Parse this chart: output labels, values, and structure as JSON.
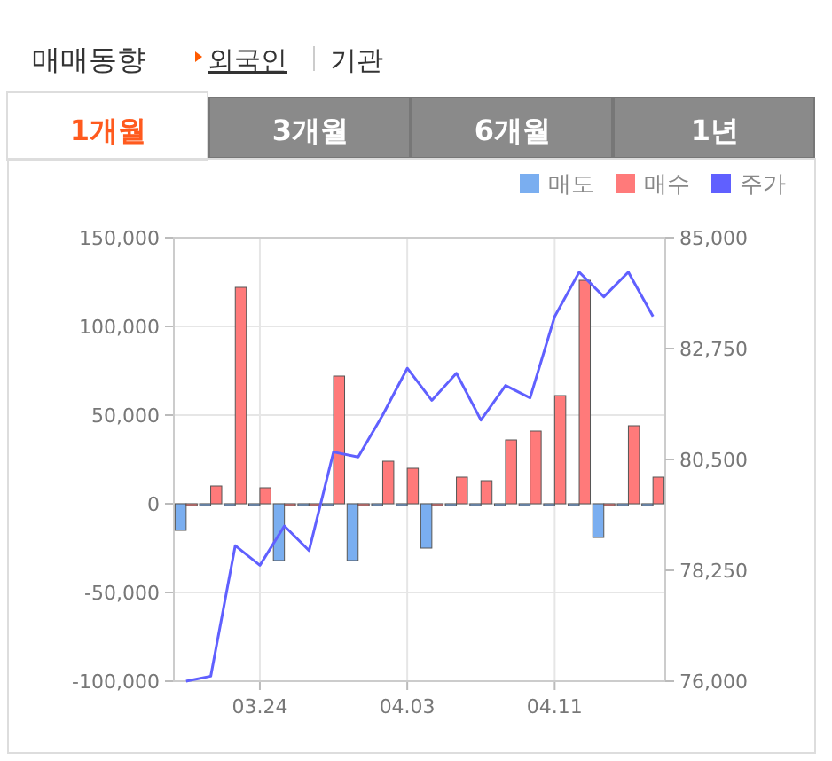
{
  "chart_data": {
    "type": "bar",
    "title": "매매동향",
    "annotations": [
      "외국인",
      "기관",
      "1개월",
      "3개월",
      "6개월",
      "1년"
    ],
    "categories": [
      null,
      null,
      null,
      "03.24",
      null,
      null,
      null,
      null,
      null,
      "04.03",
      null,
      null,
      null,
      null,
      null,
      "04.11",
      null,
      null,
      null,
      null
    ],
    "series": [
      {
        "name": "매도",
        "color": "#7aaef0",
        "values": [
          -15000,
          0,
          0,
          0,
          -32000,
          0,
          0,
          -32000,
          0,
          0,
          -25000,
          0,
          0,
          0,
          0,
          0,
          0,
          -19000,
          0,
          0
        ]
      },
      {
        "name": "매수",
        "color": "#ff7a7a",
        "values": [
          0,
          10000,
          122000,
          9000,
          0,
          0,
          72000,
          0,
          24000,
          20000,
          0,
          15000,
          13000,
          36000,
          41000,
          61000,
          126000,
          0,
          44000,
          15000
        ]
      },
      {
        "name": "주가",
        "type": "line",
        "axis": "y2",
        "color": "#6060ff",
        "values": [
          76000,
          76100,
          78750,
          78350,
          79150,
          78650,
          80650,
          80550,
          81400,
          82350,
          81700,
          82250,
          81300,
          82000,
          81750,
          83400,
          84300,
          83800,
          84300,
          83400
        ]
      }
    ],
    "ylim": [
      -100000,
      150000
    ],
    "yticks": [
      {
        "value": -100000,
        "label": "-100,000"
      },
      {
        "value": -50000,
        "label": "-50,000"
      },
      0,
      {
        "value": 50000,
        "label": "50,000"
      },
      {
        "value": 100000,
        "label": "100,000"
      },
      {
        "value": 150000,
        "label": "150,000"
      }
    ],
    "y2lim": [
      76000,
      85000
    ],
    "y2ticks": [
      {
        "value": 76000,
        "label": "76,000"
      },
      {
        "value": 78250,
        "label": "78,250"
      },
      {
        "value": 80500,
        "label": "80,500"
      },
      {
        "value": 82750,
        "label": "82,750"
      },
      {
        "value": 85000,
        "label": "85,000"
      }
    ],
    "grid": true,
    "legend": "top right",
    "marker": "none",
    "line_style": "solid"
  }
}
